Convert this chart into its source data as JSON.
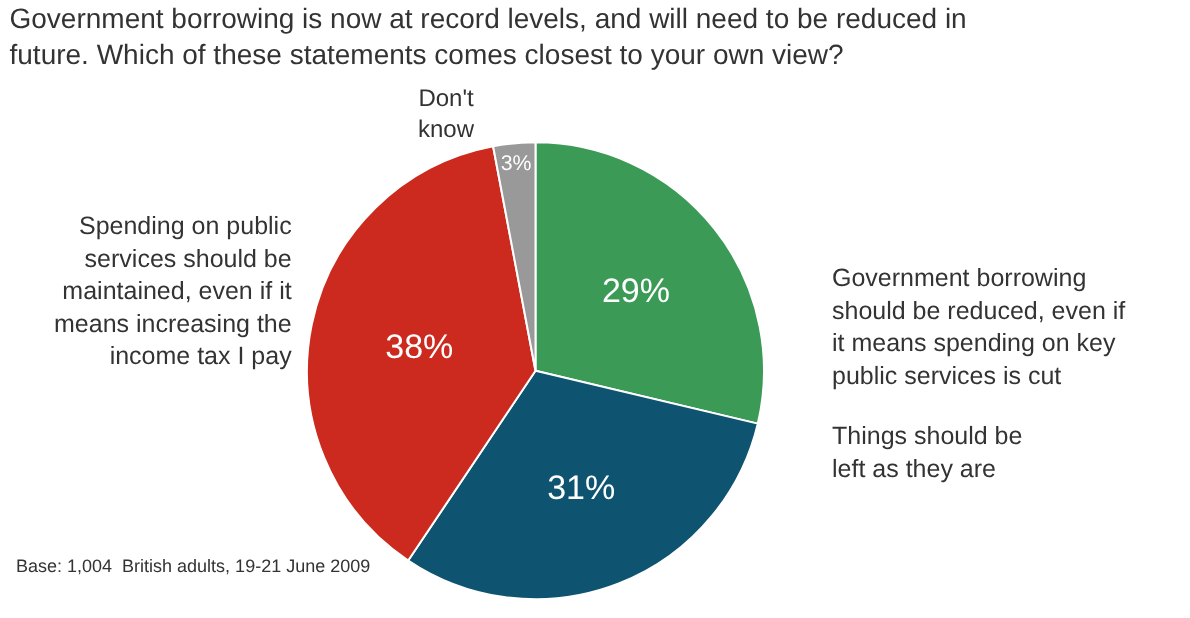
{
  "chart_data": {
    "type": "pie",
    "title": "Government borrowing is now at record levels, and will need to be reduced in future. Which of these statements comes closest to your own view?",
    "categories": [
      "Government borrowing should be reduced, even if it means spending on key public services is cut",
      "Things should be left as they are",
      "Spending on public services should be maintained, even if it means increasing the income tax I pay",
      "Don't know"
    ],
    "values": [
      29,
      31,
      38,
      3
    ],
    "colors": [
      "#3a9a56",
      "#0e5470",
      "#cc2a1e",
      "#999999"
    ],
    "value_labels": [
      "29%",
      "31%",
      "38%",
      "3%"
    ],
    "annotations": [
      "Base: 1,004  British adults, 19-21 June 2009"
    ]
  }
}
